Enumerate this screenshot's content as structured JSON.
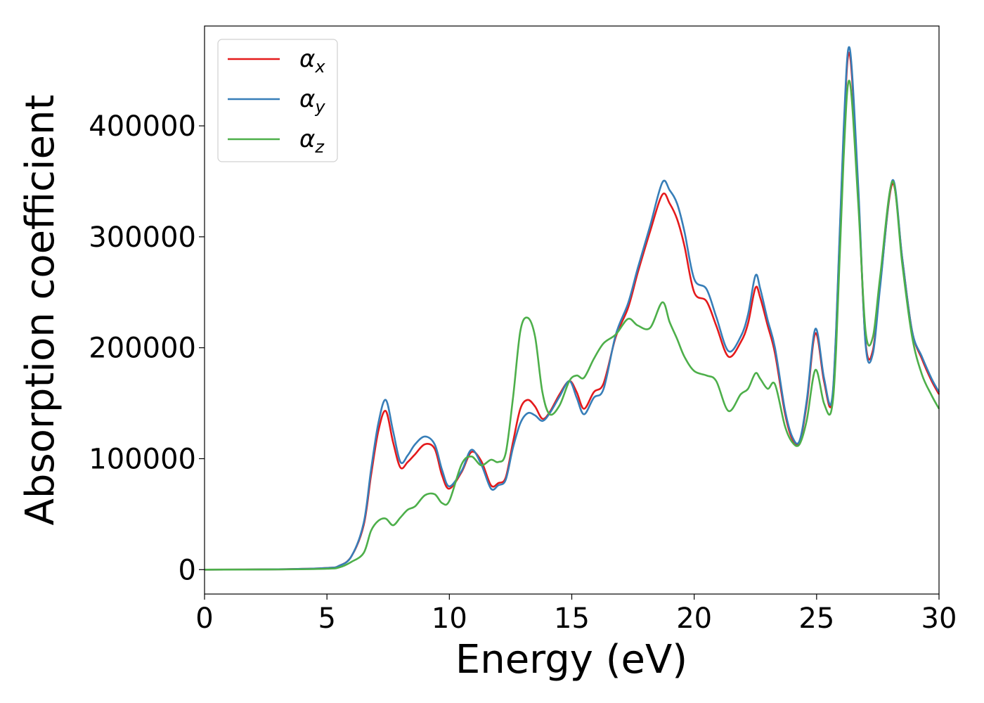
{
  "chart_data": {
    "type": "line",
    "title": "",
    "xlabel": "Energy (eV)",
    "ylabel": "Absorption coefficient",
    "xlim": [
      0,
      30
    ],
    "ylim": [
      -22000,
      490000
    ],
    "xticks": [
      0,
      5,
      10,
      15,
      20,
      25,
      30
    ],
    "yticks": [
      0,
      100000,
      200000,
      300000,
      400000
    ],
    "grid": false,
    "legend_position": "top-left",
    "x": [
      0,
      3,
      5,
      5.5,
      6,
      6.5,
      6.8,
      7.1,
      7.4,
      7.7,
      8.0,
      8.3,
      8.6,
      9.0,
      9.4,
      9.7,
      10.0,
      10.5,
      10.9,
      11.3,
      11.7,
      12.0,
      12.3,
      12.6,
      12.9,
      13.2,
      13.5,
      13.8,
      14.1,
      14.5,
      14.9,
      15.2,
      15.5,
      15.9,
      16.3,
      16.8,
      17.3,
      17.7,
      18.2,
      18.7,
      19.0,
      19.3,
      19.6,
      20.0,
      20.5,
      20.9,
      21.4,
      21.9,
      22.2,
      22.5,
      22.7,
      23.0,
      23.3,
      23.7,
      24.0,
      24.3,
      24.6,
      24.95,
      25.3,
      25.6,
      25.8,
      26.1,
      26.35,
      26.7,
      27.0,
      27.3,
      27.6,
      28.1,
      28.5,
      28.9,
      29.3,
      29.7,
      30
    ],
    "series": [
      {
        "name": "αx",
        "color": "#e41a1c",
        "values": [
          0,
          300,
          1500,
          3500,
          12000,
          40000,
          85000,
          125000,
          143000,
          115000,
          92000,
          97000,
          104000,
          113000,
          109000,
          85000,
          73000,
          88000,
          106000,
          98000,
          76000,
          78000,
          83000,
          115000,
          145000,
          153000,
          147000,
          136000,
          142000,
          158000,
          170000,
          160000,
          145000,
          160000,
          168000,
          210000,
          236000,
          268000,
          305000,
          338000,
          330000,
          316000,
          292000,
          250000,
          242000,
          220000,
          192000,
          205000,
          222000,
          254000,
          245000,
          220000,
          195000,
          142000,
          118000,
          115000,
          150000,
          213000,
          170000,
          148000,
          215000,
          390000,
          465000,
          340000,
          205000,
          198000,
          258000,
          348000,
          280000,
          215000,
          190000,
          170000,
          158000
        ]
      },
      {
        "name": "αy",
        "color": "#377eb8",
        "values": [
          0,
          300,
          1500,
          3500,
          12000,
          42000,
          90000,
          132000,
          153000,
          125000,
          97000,
          103000,
          113000,
          120000,
          113000,
          90000,
          75000,
          89000,
          108000,
          95000,
          73000,
          76000,
          81000,
          110000,
          132000,
          141000,
          139000,
          134000,
          141000,
          156000,
          170000,
          155000,
          140000,
          155000,
          163000,
          212000,
          240000,
          272000,
          310000,
          349000,
          342000,
          330000,
          305000,
          262000,
          253000,
          228000,
          197000,
          210000,
          230000,
          265000,
          253000,
          225000,
          200000,
          145000,
          120000,
          116000,
          153000,
          217000,
          173000,
          150000,
          218000,
          395000,
          470000,
          345000,
          203000,
          195000,
          256000,
          351000,
          280000,
          215000,
          192000,
          172000,
          160000
        ]
      },
      {
        "name": "αz",
        "color": "#4daf4a",
        "values": [
          0,
          200,
          800,
          2000,
          7000,
          15000,
          35000,
          44000,
          46000,
          40000,
          47000,
          54000,
          57000,
          67000,
          68000,
          60000,
          62000,
          95000,
          102000,
          94000,
          99000,
          97000,
          105000,
          155000,
          215000,
          227000,
          210000,
          160000,
          140000,
          148000,
          170000,
          175000,
          173000,
          190000,
          204000,
          212000,
          226000,
          220000,
          218000,
          241000,
          223000,
          208000,
          192000,
          179000,
          175000,
          170000,
          143000,
          158000,
          163000,
          177000,
          172000,
          163000,
          167000,
          130000,
          115000,
          113000,
          135000,
          180000,
          150000,
          143000,
          200000,
          370000,
          440000,
          330000,
          215000,
          210000,
          265000,
          350000,
          275000,
          210000,
          176000,
          157000,
          145000
        ]
      }
    ]
  },
  "legend": {
    "items": [
      {
        "symbol": "α",
        "subscript": "x",
        "color": "#e41a1c"
      },
      {
        "symbol": "α",
        "subscript": "y",
        "color": "#377eb8"
      },
      {
        "symbol": "α",
        "subscript": "z",
        "color": "#4daf4a"
      }
    ]
  }
}
